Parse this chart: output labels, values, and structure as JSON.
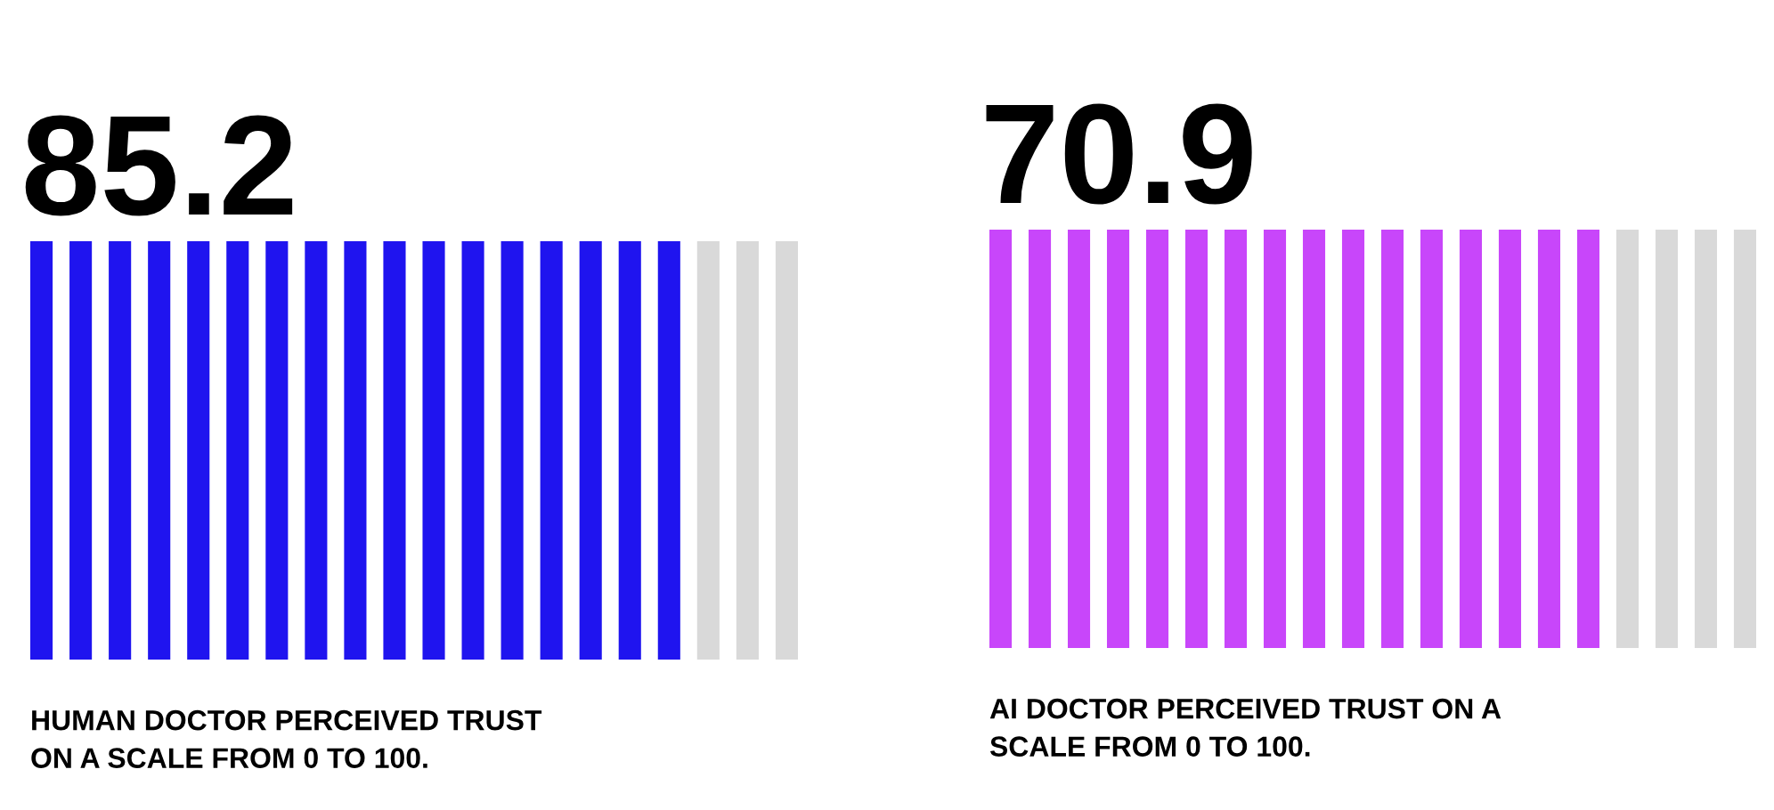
{
  "chart_data": [
    {
      "type": "other",
      "values": [
        85.2
      ],
      "data_labels": true,
      "color": "#1f14ef",
      "annotations": [
        "HUMAN DOCTOR PERCEIVED TRUST\nON A SCALE FROM 0 TO 100."
      ]
    },
    {
      "type": "other",
      "values": [
        70.9
      ],
      "data_labels": true,
      "color": "#c846fa",
      "annotations": [
        "AI DOCTOR PERCEIVED TRUST ON A\nSCALE FROM 0 TO 100."
      ]
    }
  ]
}
